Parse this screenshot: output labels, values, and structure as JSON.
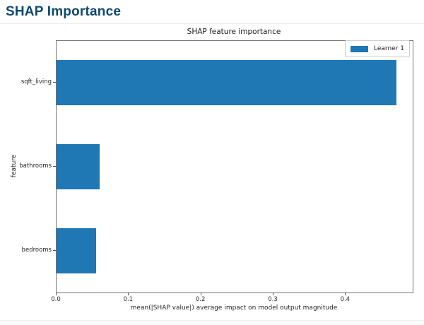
{
  "header": {
    "title": "SHAP Importance"
  },
  "colors": {
    "header_text": "#0d4a6f",
    "bar": "#1f77b4",
    "axis_line": "#737373",
    "text": "#262626"
  },
  "chart_data": {
    "type": "bar",
    "orientation": "horizontal",
    "title": "SHAP feature importance",
    "categories": [
      "sqft_living",
      "bathrooms",
      "bedrooms"
    ],
    "values": [
      0.47,
      0.06,
      0.055
    ],
    "series": [
      {
        "name": "Learner 1",
        "values": [
          0.47,
          0.06,
          0.055
        ]
      }
    ],
    "xlabel": "mean(|SHAP value|) average impact on model output magnitude",
    "ylabel": "feature",
    "xlim": [
      0,
      0.4925
    ],
    "xticks": [
      0.0,
      0.1,
      0.2,
      0.3,
      0.4
    ],
    "legend": {
      "entries": [
        "Learner 1"
      ],
      "position": "upper-right",
      "color": "#1f77b4"
    },
    "grid": false,
    "bar_color": "#1f77b4"
  }
}
